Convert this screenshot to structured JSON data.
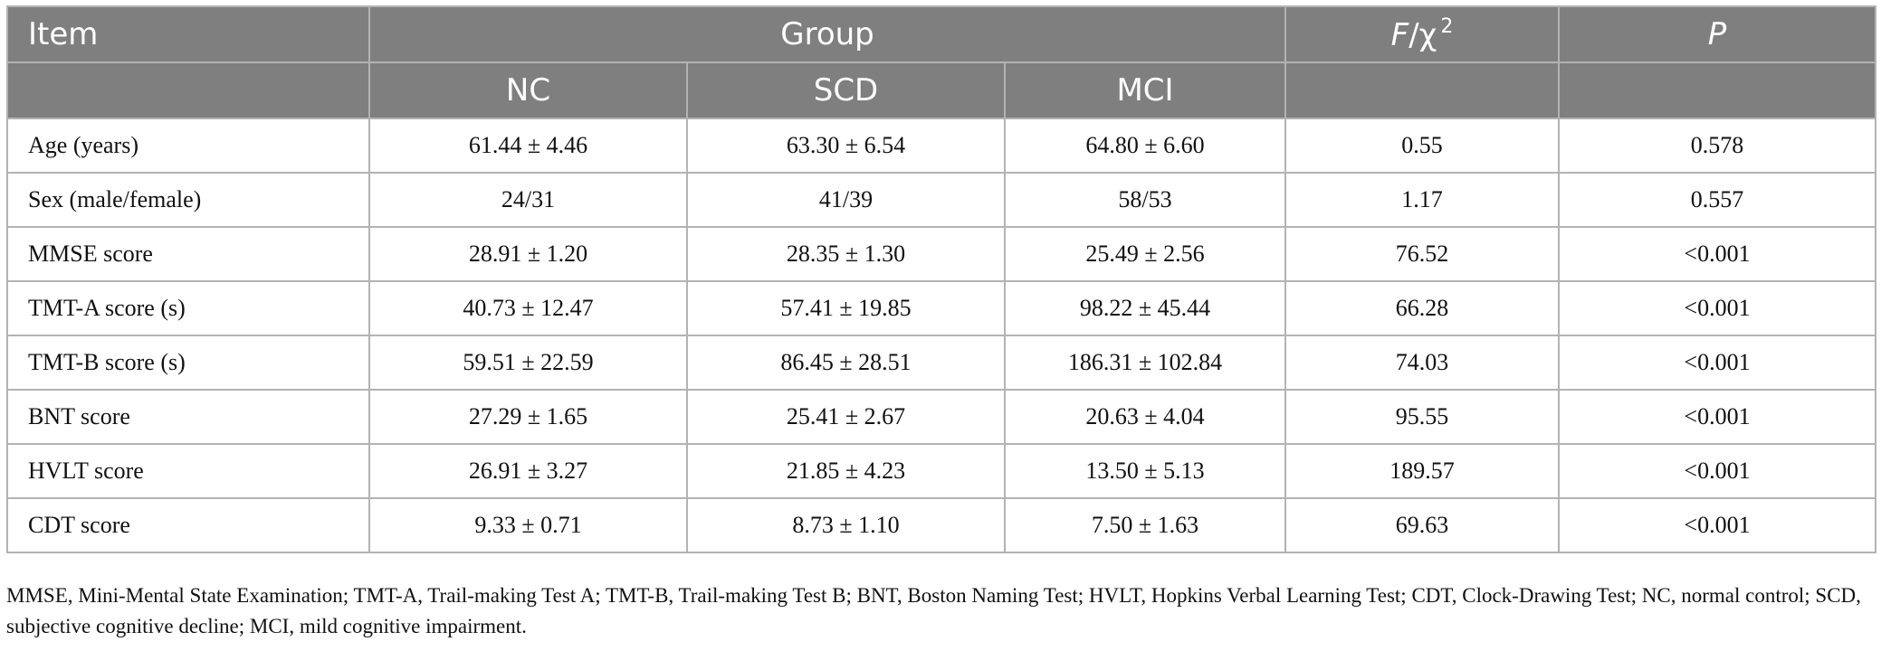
{
  "table": {
    "header": {
      "item": "Item",
      "group": "Group",
      "stat_prefix": "F",
      "stat_main": "/χ",
      "stat_sup": "2",
      "p": "P",
      "subgroups": [
        "NC",
        "SCD",
        "MCI"
      ]
    },
    "rows": [
      {
        "item": "Age (years)",
        "nc": "61.44 ± 4.46",
        "scd": "63.30 ± 6.54",
        "mci": "64.80 ± 6.60",
        "stat": "0.55",
        "p": "0.578"
      },
      {
        "item": "Sex (male/female)",
        "nc": "24/31",
        "scd": "41/39",
        "mci": "58/53",
        "stat": "1.17",
        "p": "0.557"
      },
      {
        "item": "MMSE score",
        "nc": "28.91 ± 1.20",
        "scd": "28.35 ± 1.30",
        "mci": "25.49 ± 2.56",
        "stat": "76.52",
        "p": "<0.001"
      },
      {
        "item": "TMT-A score (s)",
        "nc": "40.73 ± 12.47",
        "scd": "57.41 ± 19.85",
        "mci": "98.22 ± 45.44",
        "stat": "66.28",
        "p": "<0.001"
      },
      {
        "item": "TMT-B score (s)",
        "nc": "59.51 ± 22.59",
        "scd": "86.45 ± 28.51",
        "mci": "186.31 ± 102.84",
        "stat": "74.03",
        "p": "<0.001"
      },
      {
        "item": "BNT score",
        "nc": "27.29 ± 1.65",
        "scd": "25.41 ± 2.67",
        "mci": "20.63 ± 4.04",
        "stat": "95.55",
        "p": "<0.001"
      },
      {
        "item": "HVLT score",
        "nc": "26.91 ± 3.27",
        "scd": "21.85 ± 4.23",
        "mci": "13.50 ± 5.13",
        "stat": "189.57",
        "p": "<0.001"
      },
      {
        "item": "CDT score",
        "nc": "9.33 ± 0.71",
        "scd": "8.73 ± 1.10",
        "mci": "7.50 ± 1.63",
        "stat": "69.63",
        "p": "<0.001"
      }
    ]
  },
  "footnote": "MMSE, Mini-Mental State Examination; TMT-A, Trail-making Test A; TMT-B, Trail-making Test B; BNT, Boston Naming Test; HVLT, Hopkins Verbal Learning Test; CDT, Clock-Drawing Test; NC, normal control; SCD, subjective cognitive decline; MCI, mild cognitive impairment.",
  "colors": {
    "header_bg": "#7f7f7f",
    "border": "#b3b3b3",
    "header_text": "#ffffff"
  }
}
